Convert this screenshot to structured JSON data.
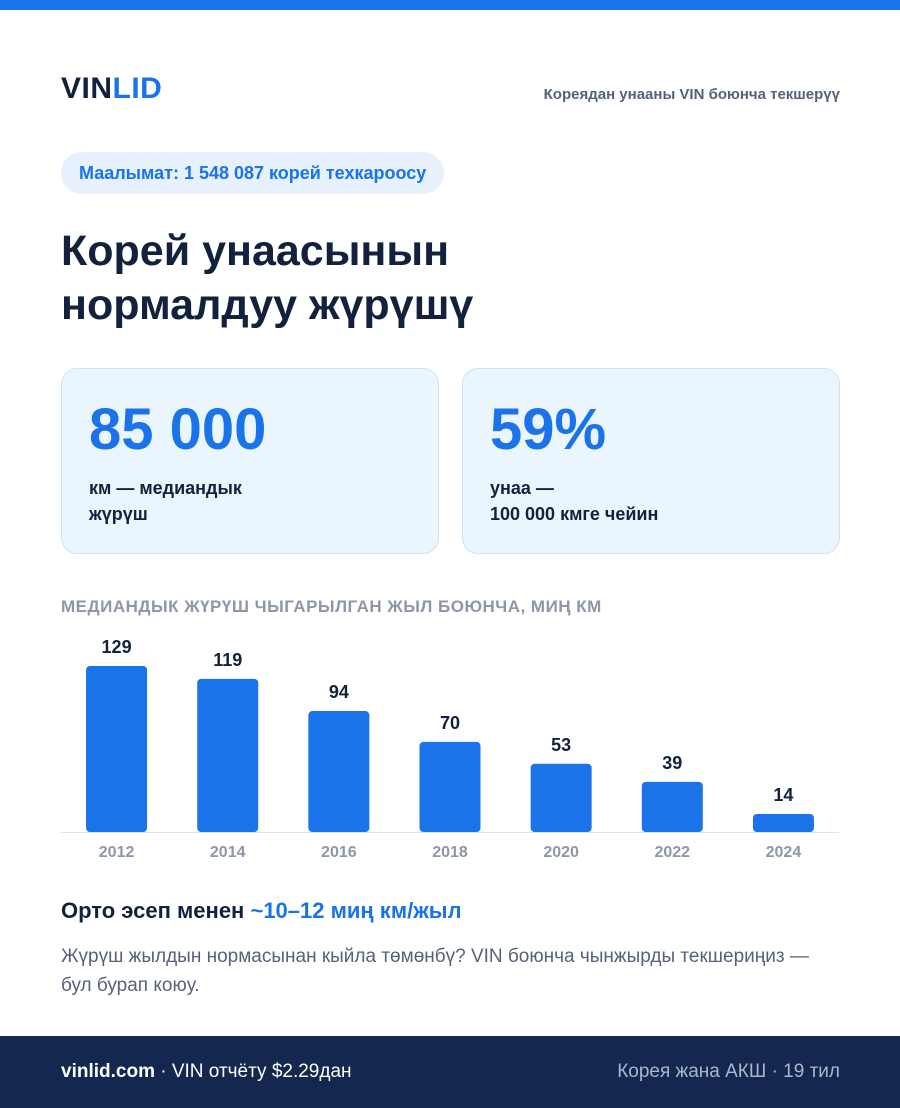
{
  "brand": {
    "logo_part1": "VIN",
    "logo_part2": "LID",
    "tagline": "Кореядан унааны VIN боюнча текшерүү",
    "primary_color": "#1a73e8",
    "dark_color": "#14213d"
  },
  "pill_text": "Маалымат: 1 548 087 корей техкароосу",
  "headline": {
    "line1": "Корей унаасынын",
    "line2": "нормалдуу жүрүшү"
  },
  "stats": [
    {
      "value": "85 000",
      "label_line1": "км — медиандык",
      "label_line2": "жүрүш"
    },
    {
      "value": "59%",
      "label_line1": "унаа —",
      "label_line2": "100 000 кмге чейин"
    }
  ],
  "chart_data": {
    "type": "bar",
    "title": "МЕДИАНДЫК ЖҮРҮШ ЧЫГАРЫЛГАН ЖЫЛ БОЮНЧА, МИҢ КМ",
    "categories": [
      "2012",
      "2014",
      "2016",
      "2018",
      "2020",
      "2022",
      "2024"
    ],
    "values": [
      129,
      119,
      94,
      70,
      53,
      39,
      14
    ],
    "ylim": [
      0,
      129
    ],
    "grid": false,
    "bar_color": "#1a73e8"
  },
  "summary": {
    "prefix": "Орто эсеп менен ",
    "accent": "~10–12 миң км/жыл"
  },
  "note": "Жүрүш жылдын нормасынан кыйла төмөнбү? VIN боюнча чынжырды текшериңиз — бул бурап коюу.",
  "footer": {
    "site": "vinlid.com",
    "left_text": " · VIN отчёту $2.29дан",
    "right_text": "Корея жана АКШ · 19 тил"
  }
}
